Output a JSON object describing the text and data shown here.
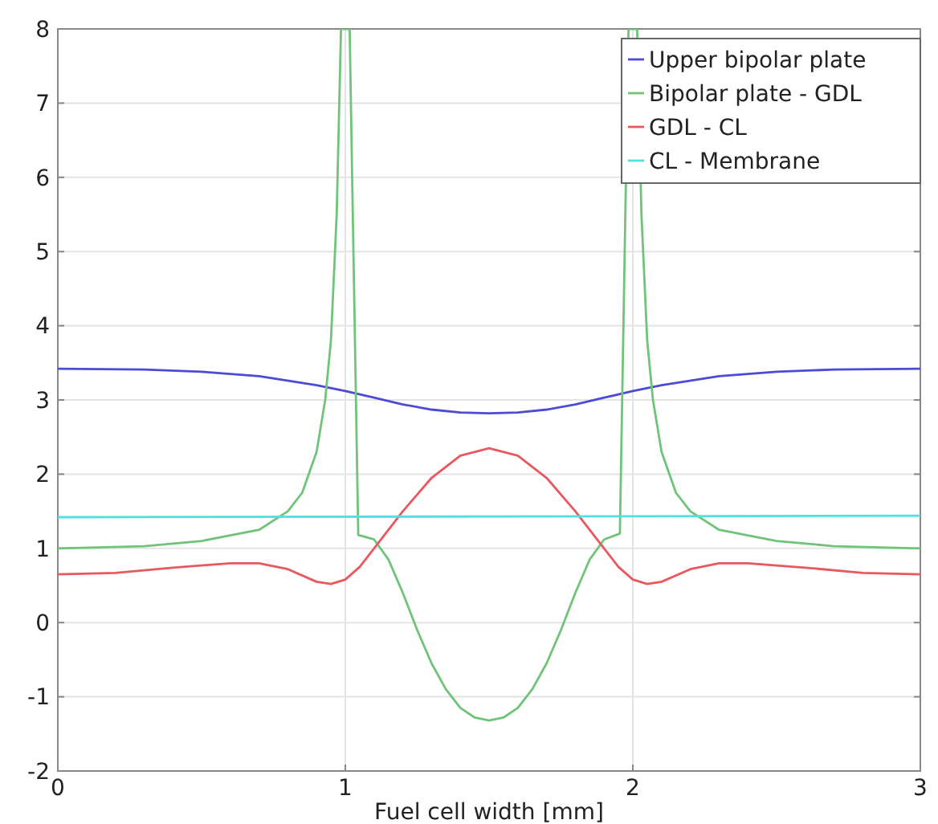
{
  "chart_data": {
    "type": "line",
    "xlabel": "Fuel cell width [mm]",
    "xlim": [
      0,
      3
    ],
    "xticks": [
      0,
      1,
      2,
      3
    ],
    "ylim": [
      -2,
      8
    ],
    "yticks": [
      -2,
      -1,
      0,
      1,
      2,
      3,
      4,
      5,
      6,
      7,
      8
    ],
    "grid": true,
    "legend": "top right",
    "line_style": "solid",
    "series": [
      {
        "name": "Upper bipolar plate",
        "color": "#4b4bd6",
        "x": [
          0,
          0.3,
          0.5,
          0.7,
          0.9,
          1.0,
          1.1,
          1.2,
          1.3,
          1.4,
          1.5,
          1.6,
          1.7,
          1.8,
          1.9,
          2.0,
          2.1,
          2.3,
          2.5,
          2.7,
          3
        ],
        "values": [
          3.42,
          3.41,
          3.38,
          3.32,
          3.2,
          3.12,
          3.03,
          2.94,
          2.87,
          2.83,
          2.82,
          2.83,
          2.87,
          2.94,
          3.03,
          3.12,
          3.2,
          3.32,
          3.38,
          3.41,
          3.42
        ]
      },
      {
        "name": "Bipolar plate - GDL",
        "color": "#6fc47a",
        "x": [
          0,
          0.3,
          0.5,
          0.7,
          0.8,
          0.85,
          0.9,
          0.93,
          0.95,
          0.97,
          0.985,
          1.015,
          1.045,
          1.1,
          1.15,
          1.2,
          1.25,
          1.3,
          1.35,
          1.4,
          1.45,
          1.5,
          1.55,
          1.6,
          1.65,
          1.7,
          1.75,
          1.8,
          1.85,
          1.9,
          1.955,
          1.985,
          2.015,
          2.03,
          2.05,
          2.07,
          2.1,
          2.15,
          2.2,
          2.3,
          2.5,
          2.7,
          3
        ],
        "values": [
          1.0,
          1.03,
          1.1,
          1.25,
          1.5,
          1.75,
          2.3,
          3.0,
          3.8,
          5.5,
          8,
          8,
          1.18,
          1.12,
          0.85,
          0.4,
          -0.1,
          -0.55,
          -0.9,
          -1.15,
          -1.28,
          -1.32,
          -1.28,
          -1.15,
          -0.9,
          -0.55,
          -0.1,
          0.4,
          0.85,
          1.12,
          1.2,
          8,
          8,
          5.5,
          3.8,
          3.0,
          2.3,
          1.75,
          1.5,
          1.25,
          1.1,
          1.03,
          1.0
        ]
      },
      {
        "name": "GDL - CL",
        "color": "#e8585e",
        "x": [
          0,
          0.2,
          0.4,
          0.6,
          0.7,
          0.8,
          0.9,
          0.95,
          1.0,
          1.05,
          1.1,
          1.2,
          1.3,
          1.4,
          1.5,
          1.6,
          1.7,
          1.8,
          1.9,
          1.95,
          2.0,
          2.05,
          2.1,
          2.2,
          2.3,
          2.4,
          2.6,
          2.8,
          3
        ],
        "values": [
          0.65,
          0.67,
          0.74,
          0.8,
          0.8,
          0.72,
          0.55,
          0.52,
          0.58,
          0.75,
          1.0,
          1.5,
          1.95,
          2.25,
          2.35,
          2.25,
          1.95,
          1.5,
          1.0,
          0.75,
          0.58,
          0.52,
          0.55,
          0.72,
          0.8,
          0.8,
          0.74,
          0.67,
          0.65
        ]
      },
      {
        "name": "CL - Membrane",
        "color": "#4fe0e0",
        "x": [
          0,
          3
        ],
        "values": [
          1.42,
          1.44
        ]
      }
    ]
  }
}
